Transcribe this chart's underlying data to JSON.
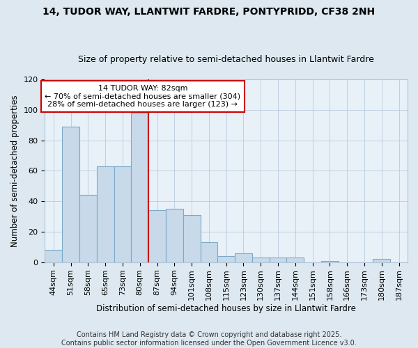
{
  "title": "14, TUDOR WAY, LLANTWIT FARDRE, PONTYPRIDD, CF38 2NH",
  "subtitle": "Size of property relative to semi-detached houses in Llantwit Fardre",
  "xlabel": "Distribution of semi-detached houses by size in Llantwit Fardre",
  "ylabel": "Number of semi-detached properties",
  "categories": [
    "44sqm",
    "51sqm",
    "58sqm",
    "65sqm",
    "73sqm",
    "80sqm",
    "87sqm",
    "94sqm",
    "101sqm",
    "108sqm",
    "115sqm",
    "123sqm",
    "130sqm",
    "137sqm",
    "144sqm",
    "151sqm",
    "158sqm",
    "166sqm",
    "173sqm",
    "180sqm",
    "187sqm"
  ],
  "values": [
    8,
    89,
    44,
    63,
    63,
    98,
    34,
    35,
    31,
    13,
    4,
    6,
    3,
    3,
    3,
    0,
    1,
    0,
    0,
    2,
    0
  ],
  "bar_color": "#c8daea",
  "bar_edge_color": "#7aaac8",
  "vline_color": "#cc0000",
  "box_edge_color": "#cc0000",
  "ylim": [
    0,
    120
  ],
  "yticks": [
    0,
    20,
    40,
    60,
    80,
    100,
    120
  ],
  "vline_label": "14 TUDOR WAY: 82sqm",
  "annotation_line1": "← 70% of semi-detached houses are smaller (304)",
  "annotation_line2": "28% of semi-detached houses are larger (123) →",
  "footer1": "Contains HM Land Registry data © Crown copyright and database right 2025.",
  "footer2": "Contains public sector information licensed under the Open Government Licence v3.0.",
  "bg_color": "#dde8f0",
  "plot_bg_color": "#e8f0f8",
  "title_fontsize": 10,
  "subtitle_fontsize": 9,
  "axis_fontsize": 8.5,
  "tick_fontsize": 8,
  "footer_fontsize": 7
}
